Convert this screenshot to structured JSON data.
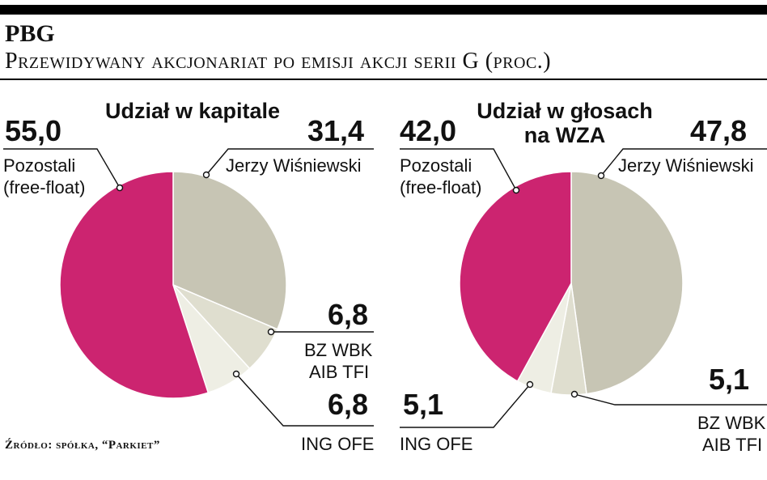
{
  "header": {
    "title": "PBG",
    "subtitle": "Przewidywany akcjonariat po emisji akcji serii G (proc.)"
  },
  "source": "Źródło: spółka, “Parkiet”",
  "chart_data": [
    {
      "type": "pie",
      "title": "Udział w kapitale",
      "slices": [
        {
          "label": "Jerzy Wiśniewski",
          "value": 31.4,
          "display": "31,4",
          "color": "#c7c5b4"
        },
        {
          "label_lines": [
            "BZ WBK",
            "AIB TFI"
          ],
          "value": 6.8,
          "display": "6,8",
          "color": "#dfdecf"
        },
        {
          "label": "ING OFE",
          "value": 6.8,
          "display": "6,8",
          "color": "#eeeee4"
        },
        {
          "label_lines": [
            "Pozostali",
            "(free-float)"
          ],
          "value": 55.0,
          "display": "55,0",
          "color": "#cc2470"
        }
      ]
    },
    {
      "type": "pie",
      "title_lines": [
        "Udział w głosach",
        "na WZA"
      ],
      "slices": [
        {
          "label": "Jerzy Wiśniewski",
          "value": 47.8,
          "display": "47,8",
          "color": "#c7c5b4"
        },
        {
          "label_lines": [
            "BZ WBK",
            "AIB TFI"
          ],
          "value": 5.1,
          "display": "5,1",
          "color": "#dfdecf"
        },
        {
          "label": "ING OFE",
          "value": 5.1,
          "display": "5,1",
          "color": "#eeeee4"
        },
        {
          "label_lines": [
            "Pozostali",
            "(free-float)"
          ],
          "value": 42.0,
          "display": "42,0",
          "color": "#cc2470"
        }
      ]
    }
  ]
}
